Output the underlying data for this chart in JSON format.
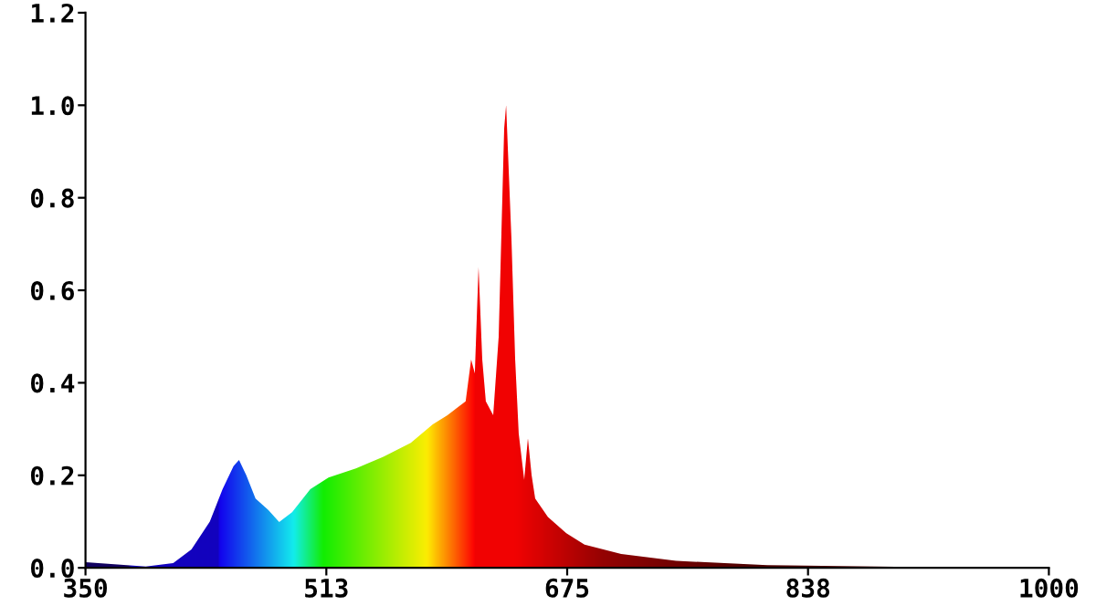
{
  "chart_data": {
    "type": "area",
    "x": [
      350,
      390.7,
      409.2,
      421.5,
      433.9,
      442.5,
      449.9,
      453.6,
      458.5,
      464.7,
      473.3,
      480.7,
      489.4,
      501.7,
      514,
      532.5,
      551,
      569.5,
      584.3,
      594.2,
      600.4,
      606.5,
      610.2,
      612.7,
      615.2,
      617.7,
      620.1,
      625.1,
      628.8,
      632.5,
      633.8,
      637.4,
      639.9,
      642.3,
      646,
      648.5,
      651,
      653.4,
      662,
      674.4,
      686.7,
      711.4,
      748.4,
      810,
      908.7,
      1000
    ],
    "values": [
      0.012,
      0.003,
      0.01,
      0.04,
      0.1,
      0.17,
      0.22,
      0.233,
      0.2,
      0.15,
      0.125,
      0.099,
      0.12,
      0.17,
      0.195,
      0.215,
      0.24,
      0.27,
      0.31,
      0.33,
      0.345,
      0.36,
      0.45,
      0.42,
      0.65,
      0.45,
      0.36,
      0.33,
      0.5,
      0.95,
      1.0,
      0.71,
      0.45,
      0.29,
      0.19,
      0.28,
      0.2,
      0.15,
      0.11,
      0.075,
      0.05,
      0.03,
      0.015,
      0.006,
      0.002,
      0.001
    ],
    "xlim": [
      350,
      1000
    ],
    "xticks": [
      350,
      {
        "value": 512.5,
        "label": "513"
      },
      675,
      {
        "value": 837.5,
        "label": "838"
      },
      1000
    ],
    "ylim": [
      0,
      1.2
    ],
    "yticks": [
      {
        "value": 0,
        "label": "0.0"
      },
      {
        "value": 0.2,
        "label": "0.2"
      },
      {
        "value": 0.4,
        "label": "0.4"
      },
      {
        "value": 0.6,
        "label": "0.6"
      },
      {
        "value": 0.8,
        "label": "0.8"
      },
      {
        "value": 1,
        "label": "1.0"
      },
      {
        "value": 1.2,
        "label": "1.2"
      }
    ],
    "grid": false
  }
}
